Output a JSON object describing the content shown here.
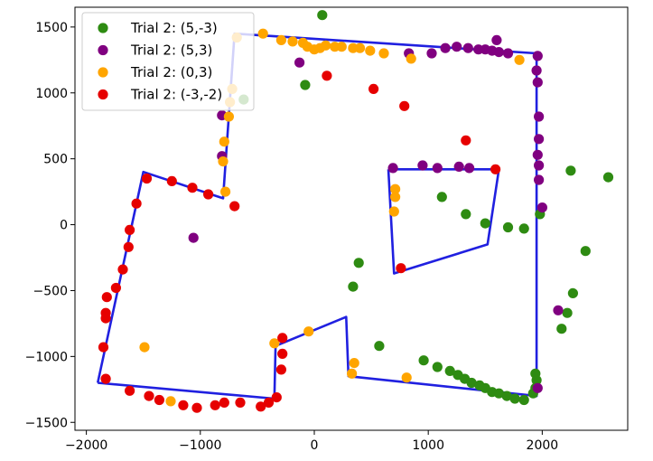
{
  "chart_data": {
    "type": "scatter",
    "title": "",
    "xlabel": "",
    "ylabel": "",
    "xlim": [
      -2100,
      2750
    ],
    "ylim": [
      -1560,
      1650
    ],
    "xticks": [
      -2000,
      -1000,
      0,
      1000,
      2000
    ],
    "yticks": [
      -1500,
      -1000,
      -500,
      0,
      500,
      1000,
      1500
    ],
    "grid": false,
    "legend_position": "top-left",
    "series": [
      {
        "name": "Trial 2: (5,-3)",
        "color": "#2e8b12",
        "points": [
          [
            70,
            1590
          ],
          [
            -80,
            1060
          ],
          [
            -620,
            950
          ],
          [
            1120,
            210
          ],
          [
            1330,
            80
          ],
          [
            1500,
            10
          ],
          [
            1700,
            -20
          ],
          [
            1840,
            -30
          ],
          [
            1980,
            80
          ],
          [
            2250,
            410
          ],
          [
            2580,
            360
          ],
          [
            2380,
            -200
          ],
          [
            2270,
            -520
          ],
          [
            2220,
            -670
          ],
          [
            2170,
            -790
          ],
          [
            390,
            -290
          ],
          [
            340,
            -470
          ],
          [
            570,
            -920
          ],
          [
            960,
            -1030
          ],
          [
            1080,
            -1080
          ],
          [
            1190,
            -1110
          ],
          [
            1260,
            -1140
          ],
          [
            1320,
            -1170
          ],
          [
            1380,
            -1200
          ],
          [
            1450,
            -1220
          ],
          [
            1500,
            -1240
          ],
          [
            1560,
            -1270
          ],
          [
            1620,
            -1280
          ],
          [
            1690,
            -1300
          ],
          [
            1760,
            -1320
          ],
          [
            1840,
            -1330
          ],
          [
            1940,
            -1130
          ],
          [
            1950,
            -1180
          ],
          [
            1940,
            -1240
          ],
          [
            1920,
            -1280
          ]
        ]
      },
      {
        "name": "Trial 2: (5,3)",
        "color": "#800080",
        "points": [
          [
            -130,
            1230
          ],
          [
            -810,
            830
          ],
          [
            -810,
            520
          ],
          [
            -1060,
            -100
          ],
          [
            830,
            1300
          ],
          [
            1030,
            1300
          ],
          [
            1150,
            1340
          ],
          [
            1250,
            1350
          ],
          [
            1350,
            1340
          ],
          [
            1440,
            1330
          ],
          [
            1500,
            1330
          ],
          [
            1560,
            1320
          ],
          [
            1620,
            1310
          ],
          [
            1700,
            1300
          ],
          [
            1600,
            1400
          ],
          [
            1960,
            1280
          ],
          [
            1950,
            1170
          ],
          [
            1960,
            1080
          ],
          [
            1970,
            820
          ],
          [
            1970,
            650
          ],
          [
            1960,
            530
          ],
          [
            1970,
            450
          ],
          [
            1970,
            340
          ],
          [
            2000,
            130
          ],
          [
            2140,
            -650
          ],
          [
            690,
            430
          ],
          [
            950,
            450
          ],
          [
            1080,
            430
          ],
          [
            1270,
            440
          ],
          [
            1360,
            430
          ],
          [
            1960,
            -1240
          ]
        ]
      },
      {
        "name": "Trial 2: (0,3)",
        "color": "#ffa500",
        "points": [
          [
            -680,
            1420
          ],
          [
            -450,
            1450
          ],
          [
            -290,
            1400
          ],
          [
            -190,
            1390
          ],
          [
            -100,
            1380
          ],
          [
            -60,
            1350
          ],
          [
            0,
            1330
          ],
          [
            50,
            1340
          ],
          [
            100,
            1360
          ],
          [
            180,
            1350
          ],
          [
            240,
            1350
          ],
          [
            340,
            1340
          ],
          [
            400,
            1340
          ],
          [
            490,
            1320
          ],
          [
            610,
            1300
          ],
          [
            850,
            1260
          ],
          [
            1800,
            1250
          ],
          [
            -720,
            1030
          ],
          [
            -740,
            930
          ],
          [
            -750,
            820
          ],
          [
            -790,
            630
          ],
          [
            -800,
            480
          ],
          [
            -780,
            250
          ],
          [
            710,
            270
          ],
          [
            710,
            210
          ],
          [
            700,
            100
          ],
          [
            -1490,
            -930
          ],
          [
            -1260,
            -1340
          ],
          [
            -350,
            -900
          ],
          [
            -50,
            -810
          ],
          [
            350,
            -1050
          ],
          [
            330,
            -1130
          ],
          [
            810,
            -1160
          ]
        ]
      },
      {
        "name": "Trial 2: (-3,-2)",
        "color": "#e60000",
        "points": [
          [
            110,
            1130
          ],
          [
            520,
            1030
          ],
          [
            790,
            900
          ],
          [
            1330,
            640
          ],
          [
            1590,
            420
          ],
          [
            -1470,
            350
          ],
          [
            -1250,
            330
          ],
          [
            -1070,
            280
          ],
          [
            -930,
            230
          ],
          [
            -700,
            140
          ],
          [
            -1560,
            160
          ],
          [
            -1620,
            -40
          ],
          [
            -1630,
            -170
          ],
          [
            -1680,
            -340
          ],
          [
            -1740,
            -480
          ],
          [
            -1820,
            -550
          ],
          [
            -1830,
            -670
          ],
          [
            -1830,
            -710
          ],
          [
            -1850,
            -930
          ],
          [
            -1830,
            -1170
          ],
          [
            -1620,
            -1260
          ],
          [
            -1450,
            -1300
          ],
          [
            -1360,
            -1330
          ],
          [
            -1150,
            -1370
          ],
          [
            -1030,
            -1390
          ],
          [
            -870,
            -1370
          ],
          [
            -790,
            -1350
          ],
          [
            -650,
            -1350
          ],
          [
            -470,
            -1380
          ],
          [
            -400,
            -1350
          ],
          [
            -330,
            -1310
          ],
          [
            -280,
            -860
          ],
          [
            -280,
            -980
          ],
          [
            -290,
            -1100
          ],
          [
            760,
            -330
          ]
        ]
      }
    ],
    "outlines": [
      {
        "color": "#2020e0",
        "points": [
          [
            -1900,
            -1200
          ],
          [
            -1500,
            400
          ],
          [
            -800,
            200
          ],
          [
            -700,
            1450
          ],
          [
            1950,
            1300
          ],
          [
            1950,
            -1300
          ],
          [
            300,
            -1150
          ],
          [
            280,
            -700
          ],
          [
            -340,
            -920
          ],
          [
            -350,
            -1320
          ],
          [
            -1900,
            -1200
          ]
        ]
      },
      {
        "color": "#2020e0",
        "points": [
          [
            650,
            420
          ],
          [
            1620,
            420
          ],
          [
            1520,
            -150
          ],
          [
            700,
            -370
          ],
          [
            650,
            420
          ]
        ]
      }
    ]
  }
}
